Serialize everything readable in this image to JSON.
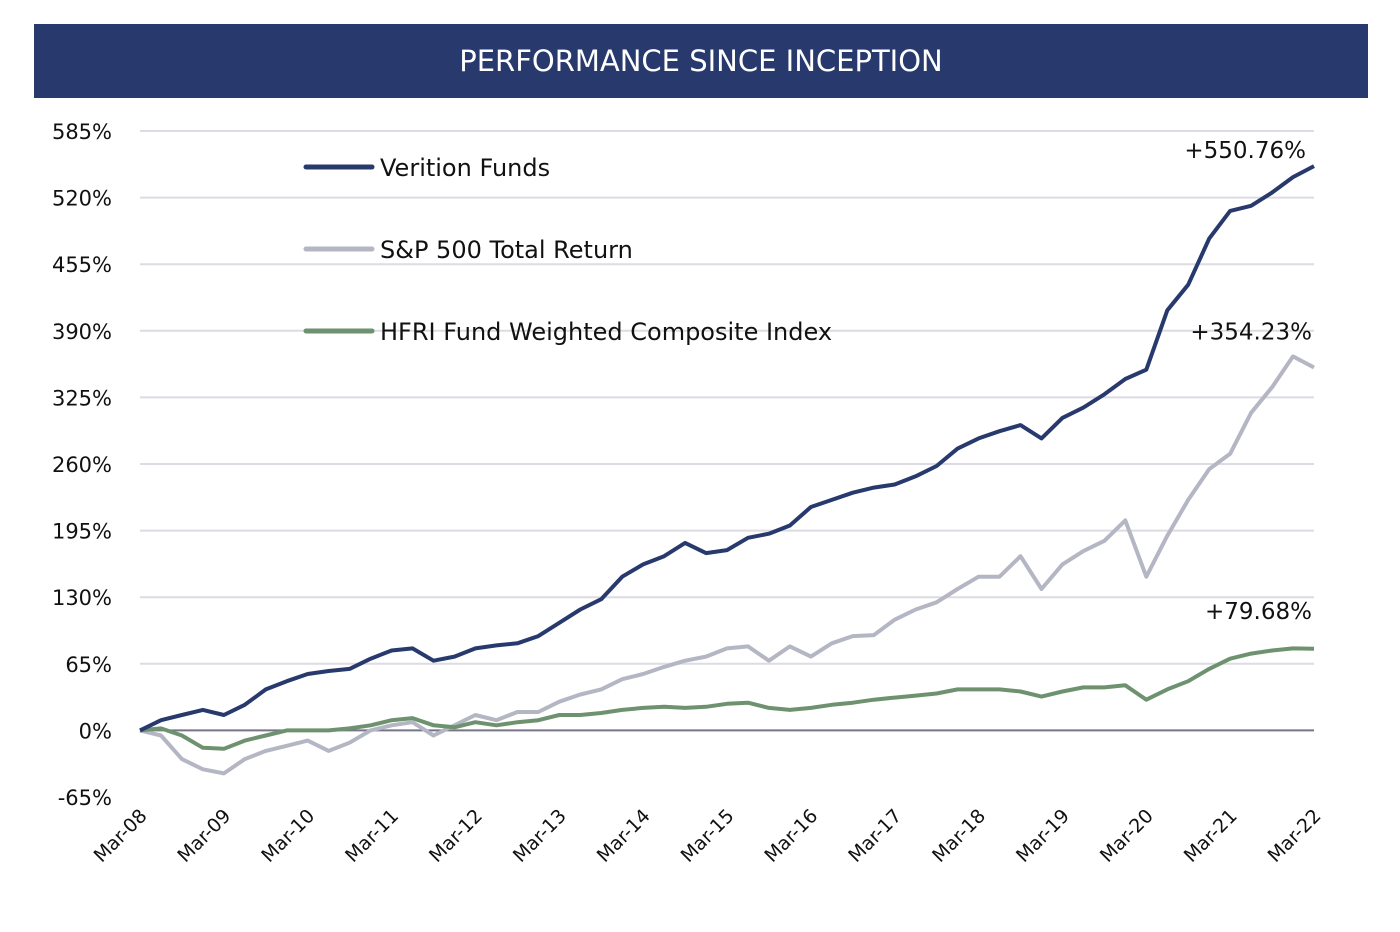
{
  "header": {
    "title": "PERFORMANCE SINCE INCEPTION"
  },
  "colors": {
    "banner": "#283a6d",
    "verition": "#283a6d",
    "sp500": "#b4b6c4",
    "hfri": "#6e9270",
    "grid": "#dcdce2",
    "zero_line": "#77748a"
  },
  "chart_data": {
    "type": "line",
    "title": "PERFORMANCE SINCE INCEPTION",
    "ylim": [
      -65,
      585
    ],
    "yticks": [
      -65,
      0,
      65,
      130,
      195,
      260,
      325,
      390,
      455,
      520,
      585
    ],
    "ytick_labels": [
      "-65%",
      "0%",
      "65%",
      "130%",
      "195%",
      "260%",
      "325%",
      "390%",
      "455%",
      "520%",
      "585%"
    ],
    "xtick_labels": [
      "Mar-08",
      "Mar-09",
      "Mar-10",
      "Mar-11",
      "Mar-12",
      "Mar-13",
      "Mar-14",
      "Mar-15",
      "Mar-16",
      "Mar-17",
      "Mar-18",
      "Mar-19",
      "Mar-20",
      "Mar-21",
      "Mar-22"
    ],
    "grid": true,
    "legend_placement": "top-left",
    "x": [
      "2008-03",
      "2008-06",
      "2008-09",
      "2008-12",
      "2009-03",
      "2009-06",
      "2009-09",
      "2009-12",
      "2010-03",
      "2010-06",
      "2010-09",
      "2010-12",
      "2011-03",
      "2011-06",
      "2011-09",
      "2011-12",
      "2012-03",
      "2012-06",
      "2012-09",
      "2012-12",
      "2013-03",
      "2013-06",
      "2013-09",
      "2013-12",
      "2014-03",
      "2014-06",
      "2014-09",
      "2014-12",
      "2015-03",
      "2015-06",
      "2015-09",
      "2015-12",
      "2016-03",
      "2016-06",
      "2016-09",
      "2016-12",
      "2017-03",
      "2017-06",
      "2017-09",
      "2017-12",
      "2018-03",
      "2018-06",
      "2018-09",
      "2018-12",
      "2019-03",
      "2019-06",
      "2019-09",
      "2019-12",
      "2020-03",
      "2020-06",
      "2020-09",
      "2020-12",
      "2021-03",
      "2021-06",
      "2021-09",
      "2021-12",
      "2022-03"
    ],
    "series": [
      {
        "name": "Verition Funds",
        "color": "#283a6d",
        "end_label": "+550.76%",
        "values": [
          0,
          10,
          15,
          20,
          15,
          25,
          40,
          48,
          55,
          58,
          60,
          70,
          78,
          80,
          68,
          72,
          80,
          83,
          85,
          92,
          105,
          118,
          128,
          150,
          162,
          170,
          183,
          173,
          176,
          188,
          192,
          200,
          218,
          225,
          232,
          237,
          240,
          248,
          258,
          275,
          285,
          292,
          298,
          285,
          305,
          315,
          328,
          343,
          352,
          410,
          435,
          480,
          507,
          512,
          525,
          540,
          550.76
        ]
      },
      {
        "name": "S&P 500 Total Return",
        "color": "#b4b6c4",
        "end_label": "+354.23%",
        "values": [
          0,
          -5,
          -28,
          -38,
          -42,
          -28,
          -20,
          -15,
          -10,
          -20,
          -12,
          0,
          5,
          8,
          -5,
          5,
          15,
          10,
          18,
          18,
          28,
          35,
          40,
          50,
          55,
          62,
          68,
          72,
          80,
          82,
          68,
          82,
          72,
          85,
          92,
          93,
          108,
          118,
          125,
          138,
          150,
          150,
          170,
          138,
          162,
          175,
          185,
          205,
          150,
          190,
          225,
          255,
          270,
          310,
          335,
          365,
          354.23
        ]
      },
      {
        "name": "HFRI Fund Weighted Composite Index",
        "color": "#6e9270",
        "end_label": "+79.68%",
        "values": [
          0,
          2,
          -5,
          -17,
          -18,
          -10,
          -5,
          0,
          0,
          0,
          2,
          5,
          10,
          12,
          5,
          3,
          8,
          5,
          8,
          10,
          15,
          15,
          17,
          20,
          22,
          23,
          22,
          23,
          26,
          27,
          22,
          20,
          22,
          25,
          27,
          30,
          32,
          34,
          36,
          40,
          40,
          40,
          38,
          33,
          38,
          42,
          42,
          44,
          30,
          40,
          48,
          60,
          70,
          75,
          78,
          80,
          79.68
        ]
      }
    ]
  }
}
